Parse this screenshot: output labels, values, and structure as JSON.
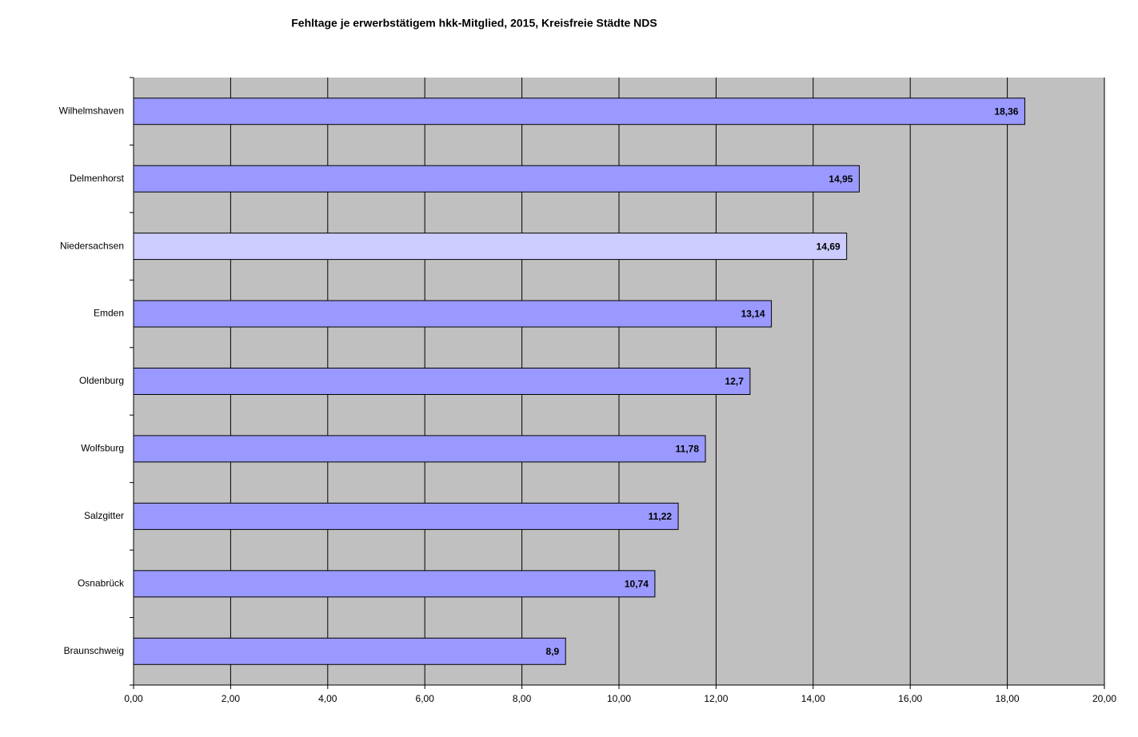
{
  "chart_data": {
    "type": "bar",
    "orientation": "horizontal",
    "title": "Fehltage je erwerbstätigem hkk-Mitglied, 2015, Kreisfreie  Städte NDS",
    "categories": [
      "Wilhelmshaven",
      "Delmenhorst",
      "Niedersachsen",
      "Emden",
      "Oldenburg",
      "Wolfsburg",
      "Salzgitter",
      "Osnabrück",
      "Braunschweig"
    ],
    "values": [
      18.36,
      14.95,
      14.69,
      13.14,
      12.7,
      11.78,
      11.22,
      10.74,
      8.9
    ],
    "value_labels": [
      "18,36",
      "14,95",
      "14,69",
      "13,14",
      "12,7",
      "11,78",
      "11,22",
      "10,74",
      "8,9"
    ],
    "colors": [
      "#9999ff",
      "#9999ff",
      "#ccccff",
      "#9999ff",
      "#9999ff",
      "#9999ff",
      "#9999ff",
      "#9999ff",
      "#9999ff"
    ],
    "xlim": [
      0,
      20
    ],
    "xticks": [
      {
        "value": 0,
        "label": "0,00"
      },
      {
        "value": 2,
        "label": "2,00"
      },
      {
        "value": 4,
        "label": "4,00"
      },
      {
        "value": 6,
        "label": "6,00"
      },
      {
        "value": 8,
        "label": "8,00"
      },
      {
        "value": 10,
        "label": "10,00"
      },
      {
        "value": 12,
        "label": "12,00"
      },
      {
        "value": 14,
        "label": "14,00"
      },
      {
        "value": 16,
        "label": "16,00"
      },
      {
        "value": 18,
        "label": "18,00"
      },
      {
        "value": 20,
        "label": "20,00"
      }
    ],
    "grid": true
  }
}
